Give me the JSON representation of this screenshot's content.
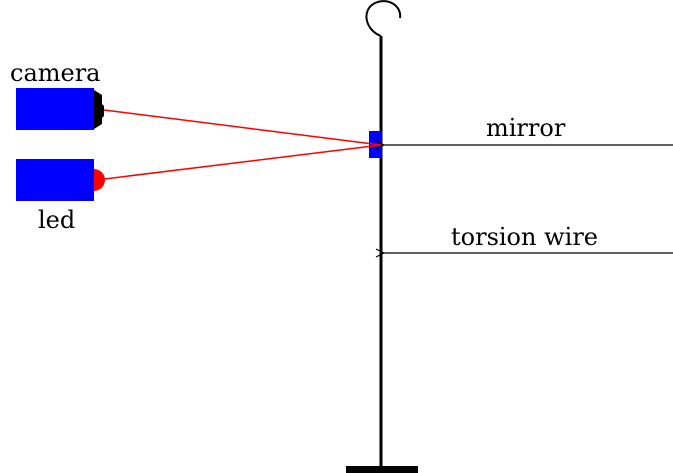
{
  "labels": {
    "camera": "camera",
    "led": "led",
    "mirror": "mirror",
    "torsion_wire": "torsion wire"
  },
  "colors": {
    "device_blue": "#0000ff",
    "beam_red": "#ff0000",
    "led_red": "#ff0000",
    "line_black": "#000000"
  }
}
